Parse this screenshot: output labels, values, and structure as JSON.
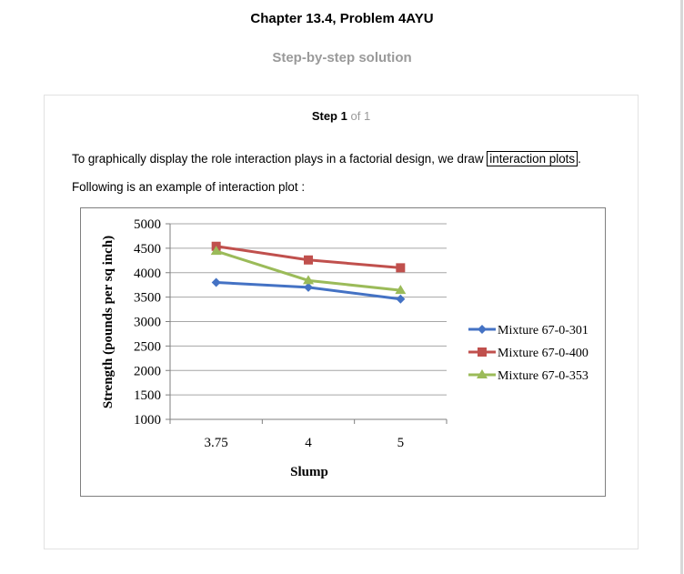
{
  "header": {
    "title": "Chapter 13.4, Problem 4AYU",
    "subtitle": "Step-by-step solution"
  },
  "step": {
    "word": "Step",
    "number": "1",
    "of": "of 1"
  },
  "body": {
    "line1_prefix": "To graphically display the role interaction plays in a factorial design, we draw ",
    "line1_boxed": "interaction plots",
    "line1_suffix": ".",
    "line2": "Following is an example of interaction plot :"
  },
  "colors": {
    "series1": "#4472c4",
    "series2": "#c0504d",
    "series3": "#9bbb59",
    "grid": "#a6a6a6"
  },
  "chart_data": {
    "type": "line",
    "title": "",
    "xlabel": "Slump",
    "ylabel": "Strength (pounds per sq inch)",
    "categories": [
      "3.75",
      "4",
      "5"
    ],
    "ylim": [
      1000,
      5000
    ],
    "yticks": [
      "5000",
      "4500",
      "4000",
      "3500",
      "3000",
      "2500",
      "2000",
      "1500",
      "1000"
    ],
    "ytick_values": [
      5000,
      4500,
      4000,
      3500,
      3000,
      2500,
      2000,
      1500,
      1000
    ],
    "grid": true,
    "legend": "right",
    "series": [
      {
        "name": "Mixture 67-0-301",
        "values": [
          3800,
          3700,
          3460
        ],
        "marker": "diamond"
      },
      {
        "name": "Mixture 67-0-400",
        "values": [
          4540,
          4260,
          4100
        ],
        "marker": "square"
      },
      {
        "name": "Mixture 67-0-353",
        "values": [
          4440,
          3840,
          3640
        ],
        "marker": "triangle"
      }
    ]
  }
}
